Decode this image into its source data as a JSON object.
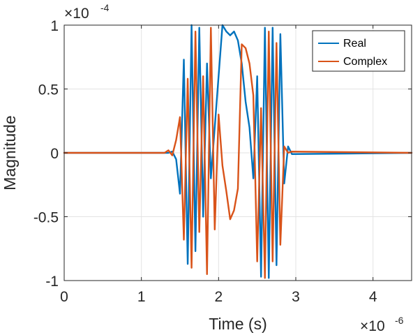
{
  "chart_data": {
    "type": "line",
    "title": "",
    "xlabel": "Time (s)",
    "ylabel": "Magnitude",
    "x_exponent_label": {
      "base": "×10",
      "exp": "-6"
    },
    "y_exponent_label": {
      "base": "×10",
      "exp": "-4"
    },
    "xlim": [
      0,
      4.5
    ],
    "ylim": [
      -1,
      1
    ],
    "x_ticks": [
      0,
      1,
      2,
      3,
      4
    ],
    "x_tick_labels": [
      "0",
      "1",
      "2",
      "3",
      "4"
    ],
    "y_ticks": [
      -1,
      -0.5,
      0,
      0.5,
      1
    ],
    "y_tick_labels": [
      "-1",
      "-0.5",
      "0",
      "0.5",
      "1"
    ],
    "grid": true,
    "legend_position": "top-right",
    "series": [
      {
        "name": "Real",
        "color": "#0072BD",
        "x": [
          0,
          1.3,
          1.35,
          1.4,
          1.45,
          1.5,
          1.55,
          1.6,
          1.65,
          1.7,
          1.75,
          1.8,
          1.85,
          1.9,
          1.95,
          2.0,
          2.05,
          2.1,
          2.15,
          2.2,
          2.25,
          2.3,
          2.35,
          2.4,
          2.45,
          2.5,
          2.55,
          2.6,
          2.65,
          2.7,
          2.75,
          2.8,
          2.85,
          2.9,
          2.95,
          4.5
        ],
        "y": [
          0,
          0.0,
          0.0,
          0.01,
          -0.05,
          -0.32,
          0.73,
          -0.87,
          1.0,
          -0.77,
          0.98,
          -0.5,
          0.7,
          -0.2,
          0.2,
          0.6,
          1.0,
          0.95,
          0.92,
          0.95,
          0.88,
          0.7,
          0.4,
          0.2,
          -0.2,
          0.6,
          -0.97,
          0.98,
          -0.98,
          0.98,
          -0.88,
          0.93,
          -0.24,
          0.05,
          -0.01,
          0
        ]
      },
      {
        "name": "Complex",
        "color": "#D95319",
        "x": [
          0,
          1.3,
          1.35,
          1.4,
          1.45,
          1.5,
          1.55,
          1.6,
          1.65,
          1.7,
          1.75,
          1.8,
          1.85,
          1.9,
          1.95,
          2.0,
          2.05,
          2.1,
          2.15,
          2.2,
          2.25,
          2.3,
          2.35,
          2.4,
          2.45,
          2.5,
          2.55,
          2.6,
          2.65,
          2.7,
          2.75,
          2.8,
          2.85,
          2.9,
          2.95,
          4.5
        ],
        "y": [
          0,
          0.0,
          0.02,
          -0.02,
          0.1,
          0.28,
          -0.68,
          0.58,
          -0.9,
          0.95,
          -0.62,
          0.6,
          -0.95,
          0.98,
          -0.6,
          0.3,
          -0.1,
          -0.3,
          -0.52,
          -0.45,
          -0.28,
          0.85,
          0.82,
          0.7,
          0.45,
          -0.85,
          0.35,
          -0.98,
          0.95,
          -0.85,
          0.86,
          -0.72,
          0.05,
          0.0,
          0.01,
          0
        ]
      }
    ]
  }
}
